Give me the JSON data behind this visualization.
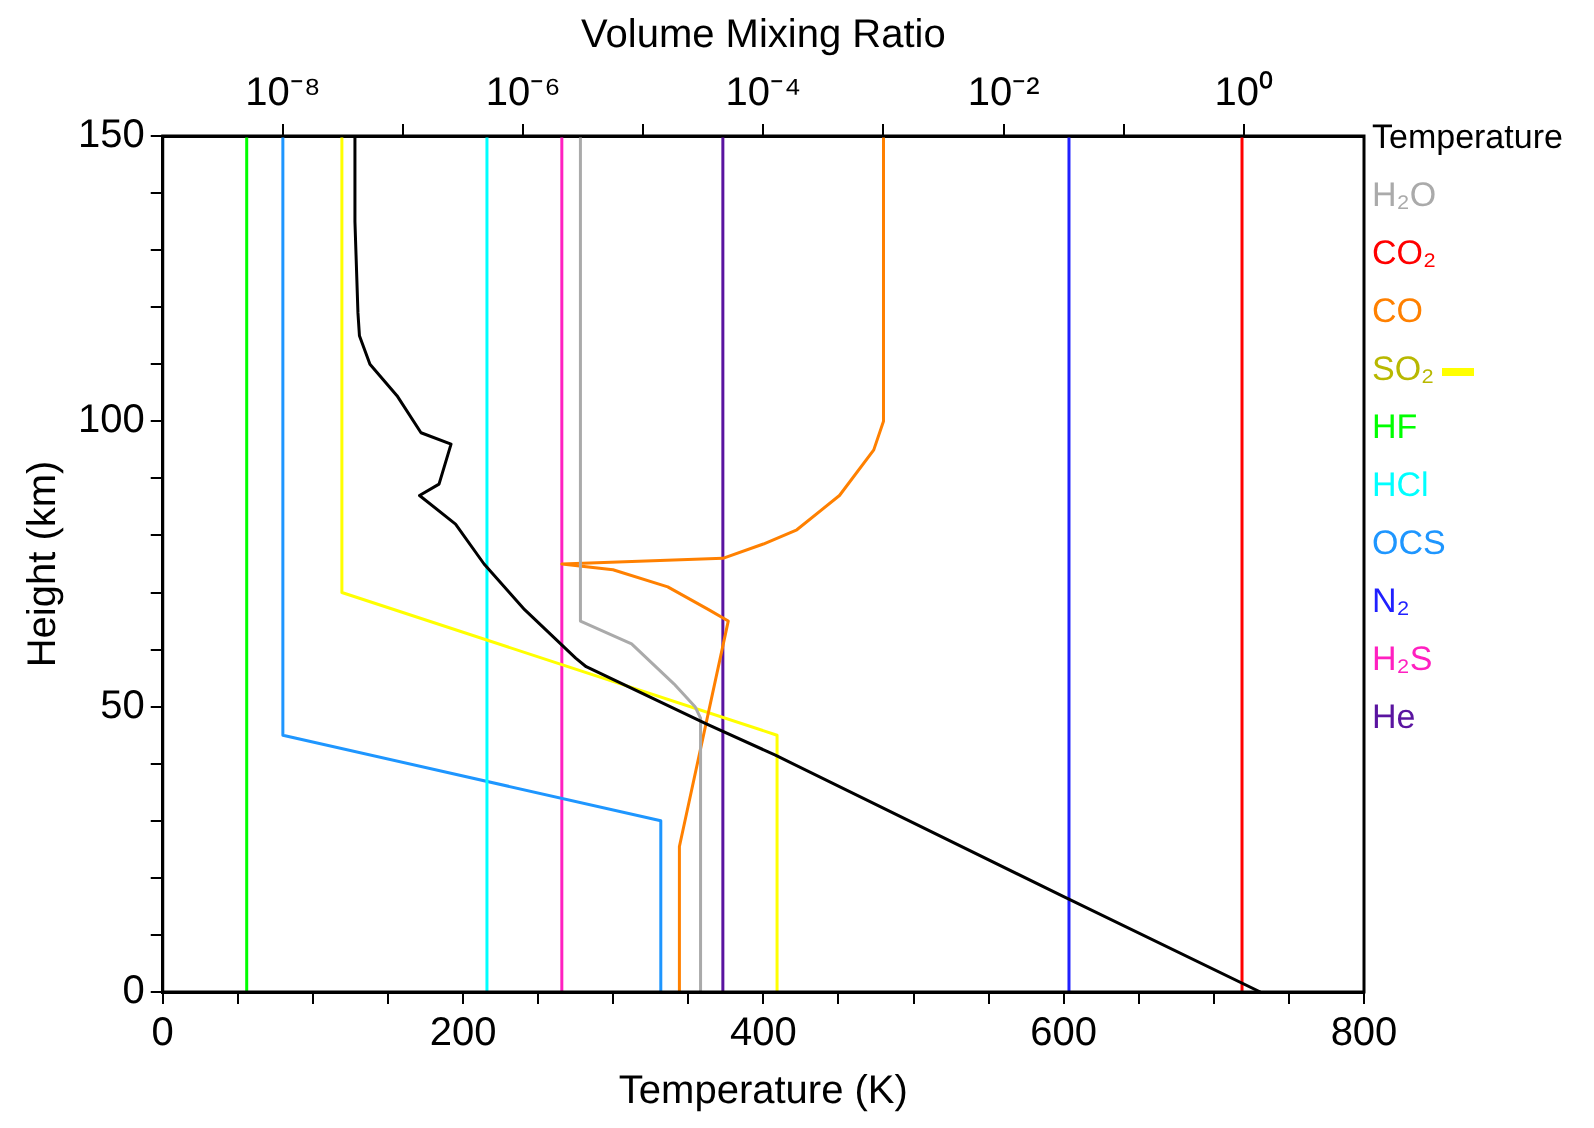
{
  "chart_data": {
    "type": "line",
    "xlabel": "Temperature (K)",
    "ylabel": "Height (km)",
    "x2label": "Volume Mixing Ratio",
    "xlim": [
      0,
      800
    ],
    "xticks": [
      0,
      {
        "value": 50,
        "label": null
      },
      {
        "value": 100,
        "label": null
      },
      {
        "value": 150,
        "label": null
      },
      200,
      {
        "value": 250,
        "label": null
      },
      {
        "value": 300,
        "label": null
      },
      {
        "value": 350,
        "label": null
      },
      400,
      {
        "value": 450,
        "label": null
      },
      {
        "value": 500,
        "label": null
      },
      {
        "value": 550,
        "label": null
      },
      600,
      {
        "value": 650,
        "label": null
      },
      {
        "value": 700,
        "label": null
      },
      {
        "value": 750,
        "label": null
      },
      800
    ],
    "x2lim": [
      1e-09,
      10
    ],
    "x2ticks": [
      {
        "value": 1e-08,
        "label": "10⁻⁸"
      },
      {
        "value": 1e-07,
        "label": null
      },
      {
        "value": 1e-06,
        "label": "10⁻⁶"
      },
      {
        "value": 1e-05,
        "label": null
      },
      {
        "value": 0.0001,
        "label": "10⁻⁴"
      },
      {
        "value": 0.001,
        "label": null
      },
      {
        "value": 0.01,
        "label": "10⁻²"
      },
      {
        "value": 0.1,
        "label": null
      },
      {
        "value": 1,
        "label": "10⁰"
      }
    ],
    "ylim": [
      0,
      150
    ],
    "yticks": [
      0,
      {
        "value": 10,
        "label": null
      },
      {
        "value": 20,
        "label": null
      },
      {
        "value": 30,
        "label": null
      },
      {
        "value": 40,
        "label": null
      },
      50,
      {
        "value": 60,
        "label": null
      },
      {
        "value": 70,
        "label": null
      },
      {
        "value": 80,
        "label": null
      },
      {
        "value": 90,
        "label": null
      },
      100,
      {
        "value": 110,
        "label": null
      },
      {
        "value": 120,
        "label": null
      },
      {
        "value": 130,
        "label": null
      },
      {
        "value": 140,
        "label": null
      },
      150
    ],
    "log": "x2",
    "grid": false,
    "legend": "right",
    "marker": "none",
    "line_style": "solid",
    "series": [
      {
        "name": "Temperature",
        "color": "#000000",
        "x": [
          128,
          128,
          130,
          131,
          138,
          156,
          172,
          192,
          184,
          171,
          195,
          214,
          241,
          275,
          282,
          362,
          408,
          600,
          731
        ],
        "values": [
          150,
          135,
          119,
          115,
          110,
          104.5,
          98,
          96,
          89,
          87,
          82,
          75,
          67,
          58.5,
          57,
          47,
          41.5,
          16.7,
          0
        ]
      },
      {
        "name": "H₂O",
        "color": "#aaaaaa",
        "axis": "x2",
        "x": [
          3e-06,
          3e-06,
          8e-06,
          1.8e-05,
          2.7e-05,
          3e-05,
          3e-05
        ],
        "values": [
          150,
          65,
          61,
          54,
          50,
          48,
          0
        ]
      },
      {
        "name": "CO₂",
        "color": "#ff0000",
        "axis": "x2",
        "x": [
          0.965,
          0.965
        ],
        "values": [
          0,
          150
        ]
      },
      {
        "name": "CO",
        "color": "#ff8000",
        "axis": "x2",
        "x": [
          0.001,
          0.001,
          0.00083,
          0.00043,
          0.00019,
          0.0001,
          4.6e-05,
          2.1e-06,
          5.6e-06,
          1.6e-05,
          3.5e-05,
          5.1e-05,
          2e-05,
          2e-05
        ],
        "values": [
          150,
          100,
          95,
          87,
          81,
          78.5,
          76,
          75,
          74,
          71,
          67,
          65,
          25.5,
          0
        ]
      },
      {
        "name": "SO₂",
        "color": "#ffff00",
        "axis": "x2",
        "x": [
          3.1e-08,
          3.1e-08,
          0.00013,
          0.00013
        ],
        "values": [
          150,
          70,
          45,
          0
        ]
      },
      {
        "name": "HF",
        "color": "#00ff00",
        "axis": "x2",
        "x": [
          5e-09,
          5e-09
        ],
        "values": [
          0,
          150
        ]
      },
      {
        "name": "HCl",
        "color": "#00ffff",
        "axis": "x2",
        "x": [
          5e-07,
          5e-07
        ],
        "values": [
          0,
          150
        ]
      },
      {
        "name": "OCS",
        "color": "#1e96ff",
        "axis": "x2",
        "x": [
          1e-08,
          1e-08,
          1.4e-05,
          1.4e-05
        ],
        "values": [
          150,
          45,
          30,
          0
        ]
      },
      {
        "name": "N₂",
        "color": "#2020ff",
        "axis": "x2",
        "x": [
          0.035,
          0.035
        ],
        "values": [
          0,
          150
        ]
      },
      {
        "name": "H₂S",
        "color": "#ff20c0",
        "axis": "x2",
        "x": [
          2.1e-06,
          2.1e-06
        ],
        "values": [
          0,
          150
        ]
      },
      {
        "name": "He",
        "color": "#5a14a0",
        "axis": "x2",
        "x": [
          4.6e-05,
          4.6e-05
        ],
        "values": [
          0,
          150
        ]
      }
    ]
  }
}
